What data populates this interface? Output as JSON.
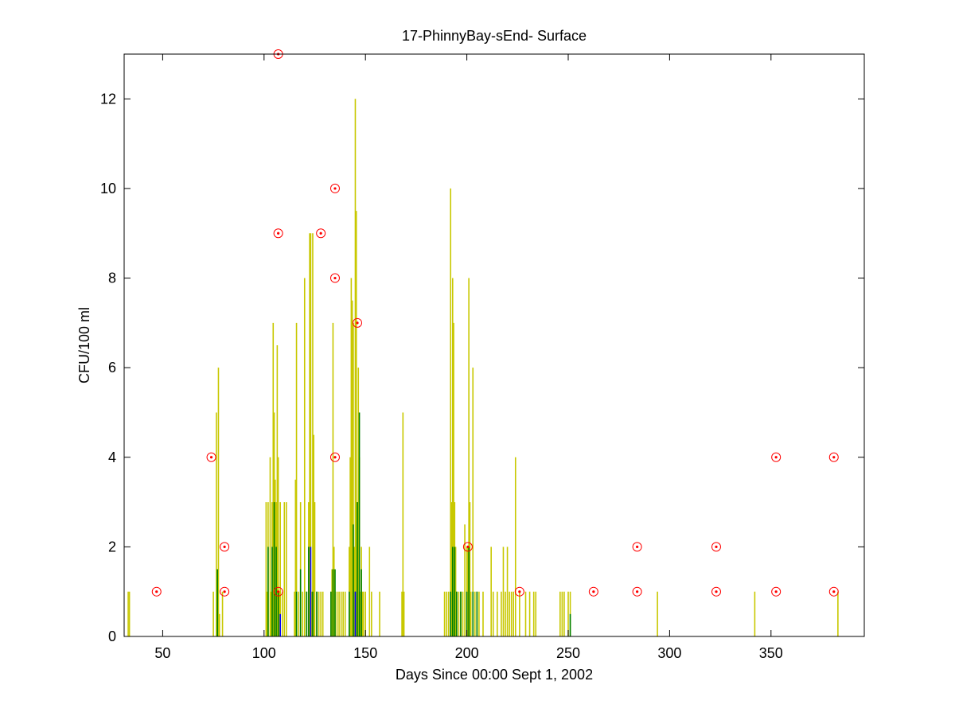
{
  "chart_data": {
    "type": "bar",
    "title": "17-PhinnyBay-sEnd- Surface",
    "xlabel": "Days Since 00:00 Sept 1, 2002",
    "ylabel": "CFU/100 ml",
    "xlim": [
      31,
      396
    ],
    "ylim": [
      0,
      13
    ],
    "xticks": [
      50,
      100,
      150,
      200,
      250,
      300,
      350
    ],
    "yticks": [
      0,
      2,
      4,
      6,
      8,
      10,
      12
    ],
    "grid": false,
    "legend": "none",
    "colors": {
      "series_yellow": "#c8c800",
      "series_green": "#008000",
      "series_blue": "#0000ff",
      "samples_marker": "#ff0000"
    },
    "series": [
      {
        "color": "series_yellow",
        "x": [
          33,
          33.6,
          75,
          76.5,
          77.5,
          78,
          79.5,
          101,
          101.5,
          102,
          103,
          103.5,
          104,
          104.5,
          105,
          105.5,
          106,
          106.5,
          107,
          107.5,
          108,
          109,
          110,
          111,
          115,
          115.5,
          116,
          117,
          118,
          119,
          120,
          121,
          122,
          122.5,
          123,
          123.5,
          124,
          124.5,
          125,
          126,
          127,
          128,
          129,
          133,
          133.5,
          134,
          134.5,
          135,
          136,
          137,
          138,
          139,
          140,
          142,
          142.5,
          143,
          143.5,
          144,
          144.5,
          145,
          145.5,
          146,
          146.5,
          147,
          147.5,
          148,
          148.5,
          149,
          150,
          152,
          153,
          157,
          168,
          168.5,
          169,
          189,
          190,
          191,
          192,
          192.5,
          193,
          193.5,
          194,
          194.5,
          195,
          196,
          197,
          198,
          199,
          200,
          200.5,
          201,
          201.5,
          202,
          203,
          204,
          205,
          206,
          208,
          212,
          213,
          215,
          217,
          218,
          219,
          220,
          221,
          222,
          223,
          224,
          226,
          229,
          231,
          233,
          234,
          246,
          247,
          248,
          250,
          251,
          294,
          342,
          383
        ],
        "values": [
          1,
          1,
          1,
          5,
          6,
          0.5,
          1,
          3,
          1,
          3,
          4,
          1,
          3,
          7,
          5,
          3.5,
          3,
          6.5,
          4,
          1,
          3,
          1,
          3,
          3,
          1,
          3.5,
          7,
          1,
          3,
          1,
          8,
          1,
          3,
          9,
          9,
          1,
          9,
          4.5,
          3,
          1,
          1,
          1,
          1,
          1,
          1.5,
          7,
          2,
          1,
          1,
          1,
          1,
          1,
          1,
          2,
          4,
          8,
          7.5,
          7,
          2,
          12,
          9.5,
          3,
          6,
          4,
          1,
          2,
          1,
          1,
          1,
          2,
          1,
          1,
          1,
          5,
          1,
          1,
          1,
          1,
          10,
          3,
          8,
          7,
          3,
          2,
          1,
          1,
          1,
          1,
          2.5,
          2,
          2,
          8,
          3,
          1,
          6,
          1,
          1,
          1,
          1,
          2,
          1,
          1,
          1,
          2,
          1,
          2,
          1,
          1,
          1,
          4,
          1,
          1,
          1,
          1,
          1,
          1,
          1,
          1,
          1,
          1,
          1,
          1,
          1
        ]
      },
      {
        "color": "series_green",
        "x": [
          77,
          102,
          104,
          105,
          106,
          107,
          116,
          118,
          121,
          122,
          124,
          126,
          133,
          134,
          135,
          142,
          144,
          145,
          146,
          147,
          148,
          192,
          193,
          194,
          195,
          197,
          200,
          201,
          203,
          205,
          251
        ],
        "values": [
          1.5,
          2,
          2,
          3,
          2,
          1,
          1,
          1.5,
          1,
          2,
          1,
          1,
          1,
          1.5,
          1.5,
          1,
          2.5,
          1,
          3,
          5,
          1.5,
          1,
          2,
          2,
          1,
          1,
          1,
          2,
          1,
          1,
          0.5
        ]
      },
      {
        "color": "series_blue",
        "x": [
          108,
          123,
          145
        ],
        "values": [
          0.5,
          2,
          1
        ]
      }
    ],
    "samples": {
      "color": "samples_marker",
      "x": [
        47,
        74,
        80.5,
        80.5,
        107,
        107,
        107,
        128,
        135,
        135,
        135,
        146,
        200.5,
        226,
        262.5,
        284,
        284,
        323,
        323,
        352.5,
        352.5,
        381,
        381
      ],
      "y": [
        1,
        4,
        2,
        1,
        13,
        9,
        1,
        9,
        10,
        8,
        4,
        7,
        2,
        1,
        1,
        2,
        1,
        2,
        1,
        4,
        1,
        4,
        1
      ]
    }
  }
}
